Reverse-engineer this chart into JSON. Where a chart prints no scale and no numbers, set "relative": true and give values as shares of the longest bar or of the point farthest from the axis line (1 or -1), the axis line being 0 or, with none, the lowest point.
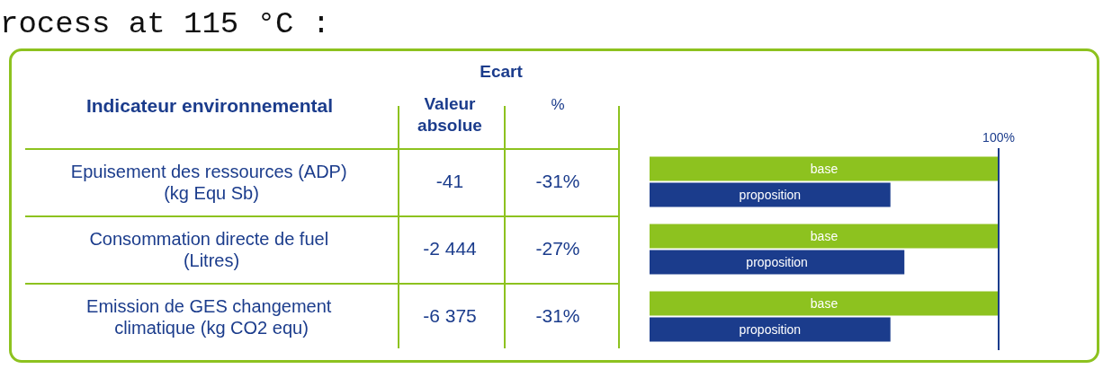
{
  "chart_data": {
    "type": "bar",
    "orientation": "horizontal",
    "relative": true,
    "title": "rocess at 115 °C :",
    "ylabel": "Indicateur environnemental",
    "categories": [
      "Epuisement des ressources (ADP) (kg Equ Sb)",
      "Consommation directe de fuel (Litres)",
      "Emission de GES changement climatique (kg CO2 equ)"
    ],
    "series": [
      {
        "name": "base",
        "color": "#8dc21f",
        "values": [
          1,
          1,
          1
        ]
      },
      {
        "name": "proposition",
        "color": "#1b3c8c",
        "values": [
          0.69,
          0.73,
          0.69
        ]
      }
    ],
    "ref_lines": [
      {
        "axis": "x",
        "value": 1,
        "label": "100%",
        "color": "#1b3c8c"
      }
    ],
    "annotations": [
      "Ecart",
      "Valeur absolue",
      "%",
      "-41",
      "-31%",
      "-2 444",
      "-27%",
      "-6 375",
      "-31%"
    ],
    "legend": false
  }
}
